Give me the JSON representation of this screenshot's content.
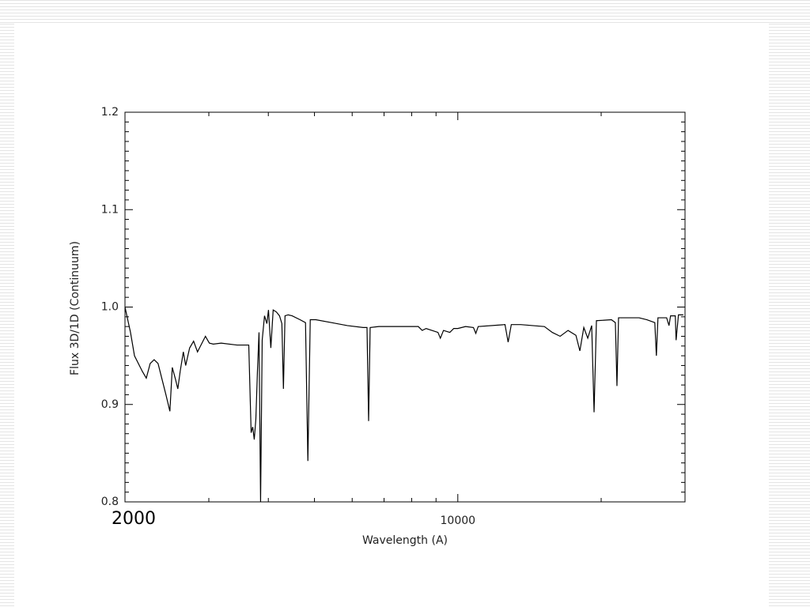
{
  "chart_data": {
    "type": "line",
    "xlabel": "Wavelength (A)",
    "ylabel": "Flux 3D/1D (Continuum)",
    "xscale": "log",
    "xlim": [
      2000,
      30000
    ],
    "xticks": [
      2000,
      10000
    ],
    "xminorticks": [
      3000,
      4000,
      5000,
      6000,
      7000,
      8000,
      9000,
      20000
    ],
    "ylim": [
      0.8,
      1.2
    ],
    "yticks": [
      0.8,
      0.9,
      {
        "value": 1,
        "label": "1.0"
      },
      1.1,
      1.2
    ],
    "yminor": 10,
    "color": "#000000",
    "x": [
      2000,
      2054,
      2094,
      2175,
      2217,
      2259,
      2303,
      2347,
      2392,
      2438,
      2485,
      2514,
      2553,
      2582,
      2612,
      2652,
      2682,
      2734,
      2787,
      2840,
      2895,
      2951,
      3007,
      3065,
      3184,
      3437,
      3639,
      3681,
      3709,
      3737,
      3766,
      3795,
      3824,
      3853,
      3883,
      3927,
      3972,
      4003,
      4049,
      4095,
      4158,
      4222,
      4271,
      4303,
      4336,
      4403,
      4488,
      4662,
      4788,
      4843,
      4899,
      5031,
      5430,
      5860,
      6325,
      6446,
      6496,
      6545,
      6826,
      8259,
      8418,
      8580,
      9085,
      9190,
      9331,
      9620,
      9805,
      10000,
      10382,
      10785,
      10909,
      11035,
      12562,
      12755,
      12951,
      13557,
      15199,
      15789,
      16403,
      17040,
      17702,
      18043,
      18390,
      18744,
      19105,
      19325,
      19547,
      21018,
      21422,
      21586,
      21752,
      24020,
      24952,
      25922,
      26120,
      26320,
      27448,
      27764,
      27976,
      28622,
      28732,
      29062,
      29750
    ],
    "values": [
      1.0,
      0.974,
      0.95,
      0.934,
      0.927,
      0.942,
      0.946,
      0.942,
      0.926,
      0.91,
      0.893,
      0.938,
      0.926,
      0.916,
      0.934,
      0.954,
      0.94,
      0.958,
      0.965,
      0.954,
      0.962,
      0.97,
      0.963,
      0.962,
      0.963,
      0.961,
      0.961,
      0.871,
      0.877,
      0.864,
      0.885,
      0.934,
      0.974,
      0.8,
      0.966,
      0.991,
      0.983,
      0.997,
      0.958,
      0.997,
      0.995,
      0.991,
      0.983,
      0.916,
      0.991,
      0.992,
      0.991,
      0.987,
      0.984,
      0.842,
      0.987,
      0.987,
      0.984,
      0.981,
      0.979,
      0.979,
      0.883,
      0.979,
      0.98,
      0.98,
      0.976,
      0.978,
      0.974,
      0.968,
      0.976,
      0.974,
      0.978,
      0.978,
      0.98,
      0.979,
      0.973,
      0.98,
      0.982,
      0.964,
      0.982,
      0.982,
      0.98,
      0.974,
      0.97,
      0.976,
      0.971,
      0.955,
      0.979,
      0.968,
      0.981,
      0.892,
      0.986,
      0.987,
      0.984,
      0.919,
      0.989,
      0.989,
      0.987,
      0.984,
      0.95,
      0.989,
      0.989,
      0.981,
      0.991,
      0.991,
      0.966,
      0.992,
      0.992
    ]
  }
}
